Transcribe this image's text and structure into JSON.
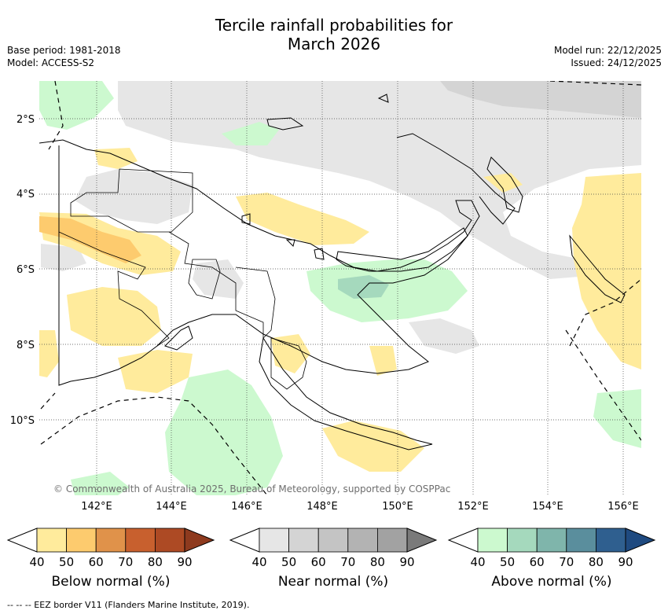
{
  "title": {
    "line1": "Tercile rainfall probabilities for",
    "line2": "March 2026"
  },
  "header_left": {
    "base_period": "Base period: 1981-2018",
    "model": "Model: ACCESS-S2"
  },
  "header_right": {
    "model_run": "Model run: 22/12/2025",
    "issued": "Issued: 24/12/2025"
  },
  "map": {
    "lat_labels": [
      "2°S",
      "4°S",
      "6°S",
      "8°S",
      "10°S"
    ],
    "lon_labels": [
      "142°E",
      "144°E",
      "146°E",
      "148°E",
      "150°E",
      "152°E",
      "154°E",
      "156°E"
    ],
    "copyright": "© Commonwealth of Australia 2025, Bureau of Meteorology, supported by COSPPac"
  },
  "colorbars": [
    {
      "title": "Below normal (%)",
      "ticks": [
        "40",
        "50",
        "60",
        "70",
        "80",
        "90"
      ],
      "colors": [
        "#ffffff",
        "#ffeb9c",
        "#fdcb6e",
        "#e0924a",
        "#c8602e",
        "#ad4a24",
        "#8e3a1e"
      ]
    },
    {
      "title": "Near normal (%)",
      "ticks": [
        "40",
        "50",
        "60",
        "70",
        "80",
        "90"
      ],
      "colors": [
        "#ffffff",
        "#e6e6e6",
        "#d4d4d4",
        "#c4c4c4",
        "#b3b3b3",
        "#a2a2a2",
        "#7a7a7a"
      ]
    },
    {
      "title": "Above normal (%)",
      "ticks": [
        "40",
        "50",
        "60",
        "70",
        "80",
        "90"
      ],
      "colors": [
        "#ffffff",
        "#ccf9cf",
        "#a5d9bd",
        "#7fb5ab",
        "#5a8e9d",
        "#2f5f8f",
        "#1f4a80"
      ]
    }
  ],
  "legend_footer": "--  --  -- EEZ border V11 (Flanders Marine Institute, 2019)."
}
